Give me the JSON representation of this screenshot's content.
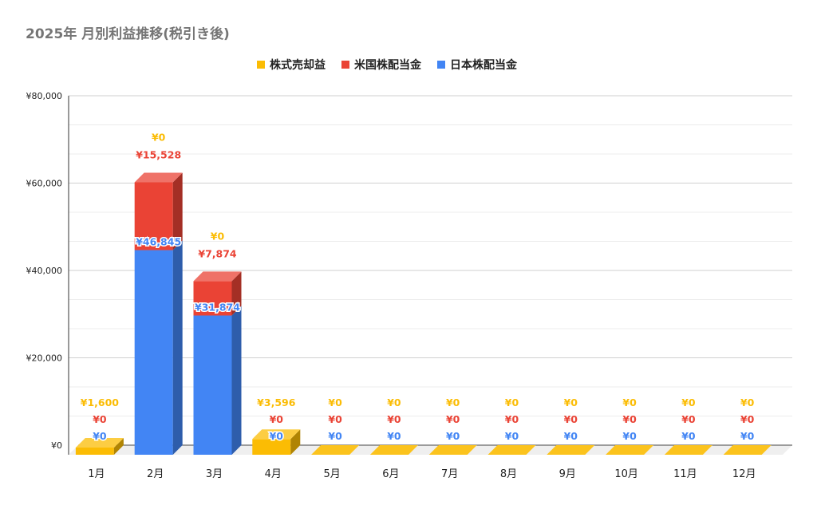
{
  "chart_data": {
    "type": "bar",
    "stacked": true,
    "style": "3d",
    "title": "2025年 月別利益推移(税引き後)",
    "xlabel": "",
    "ylabel": "",
    "categories": [
      "1月",
      "2月",
      "3月",
      "4月",
      "5月",
      "6月",
      "7月",
      "8月",
      "9月",
      "10月",
      "11月",
      "12月"
    ],
    "ylim": [
      0,
      80000
    ],
    "yticks": [
      0,
      20000,
      40000,
      60000,
      80000
    ],
    "ytick_labels": [
      "¥0",
      "¥20,000",
      "¥40,000",
      "¥60,000",
      "¥80,000"
    ],
    "grid": true,
    "legend_position": "top",
    "series": [
      {
        "name": "日本株配当金",
        "color": "#4285f4",
        "values": [
          0,
          46845,
          31874,
          0,
          0,
          0,
          0,
          0,
          0,
          0,
          0,
          0
        ],
        "labels": [
          "¥0",
          "¥46,845",
          "¥31,874",
          "¥0",
          "¥0",
          "¥0",
          "¥0",
          "¥0",
          "¥0",
          "¥0",
          "¥0",
          "¥0"
        ]
      },
      {
        "name": "米国株配当金",
        "color": "#ea4335",
        "values": [
          0,
          15528,
          7874,
          0,
          0,
          0,
          0,
          0,
          0,
          0,
          0,
          0
        ],
        "labels": [
          "¥0",
          "¥15,528",
          "¥7,874",
          "¥0",
          "¥0",
          "¥0",
          "¥0",
          "¥0",
          "¥0",
          "¥0",
          "¥0",
          "¥0"
        ]
      },
      {
        "name": "株式売却益",
        "color": "#fbbc04",
        "values": [
          1600,
          0,
          0,
          3596,
          0,
          0,
          0,
          0,
          0,
          0,
          0,
          0
        ],
        "labels": [
          "¥1,600",
          "¥0",
          "¥0",
          "¥3,596",
          "¥0",
          "¥0",
          "¥0",
          "¥0",
          "¥0",
          "¥0",
          "¥0",
          "¥0"
        ]
      }
    ],
    "legend_order": [
      2,
      1,
      0
    ]
  }
}
